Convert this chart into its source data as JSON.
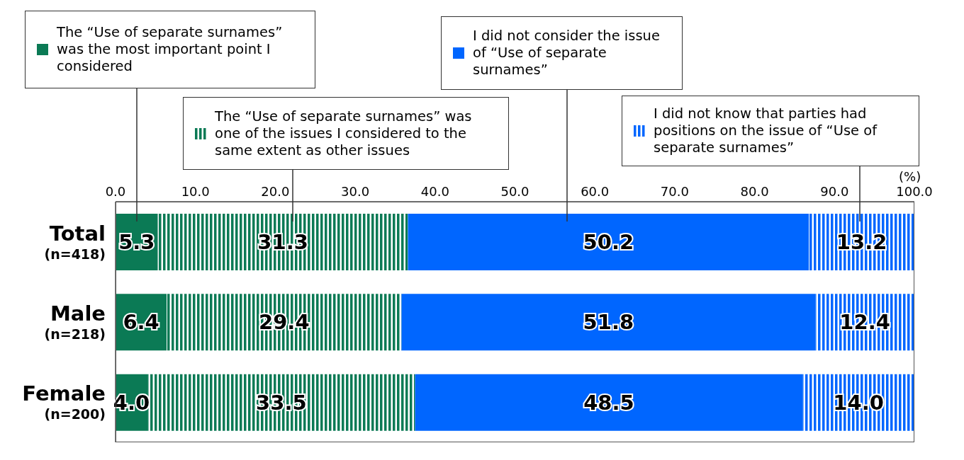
{
  "chart_data": {
    "type": "bar",
    "orientation": "horizontal",
    "stacked": true,
    "categories": [
      "Total\n(n=418)",
      "Male\n(n=218)",
      "Female\n(n=200)"
    ],
    "series": [
      {
        "name": "The “Use of separate surnames” was the most important point I considered",
        "color": "#0b7a55",
        "values": [
          5.3,
          6.4,
          4.0
        ],
        "value_labels": [
          "5.3",
          "6.4",
          "4.0"
        ]
      },
      {
        "name": "The “Use of separate surnames” was one of the issues I considered to the same extent as other issues",
        "color": "#0b7a55",
        "values": [
          31.3,
          29.4,
          33.5
        ],
        "value_labels": [
          "31.3",
          "29.4",
          "33.5"
        ]
      },
      {
        "name": "I did not consider the issue of “Use of separate surnames”",
        "color": "#0066ff",
        "values": [
          50.2,
          51.8,
          48.5
        ],
        "value_labels": [
          "50.2",
          "51.8",
          "48.5"
        ]
      },
      {
        "name": "I did not know that parties had positions on the issue of “Use of separate surnames”",
        "color": "#0066ff",
        "values": [
          13.2,
          12.4,
          14.0
        ],
        "value_labels": [
          "13.2",
          "12.4",
          "14.0"
        ]
      }
    ],
    "xlim": [
      0,
      100
    ],
    "xticks": [
      {
        "value": 0,
        "label": "0.0"
      },
      {
        "value": 10,
        "label": "10.0"
      },
      {
        "value": 20,
        "label": "20.0"
      },
      {
        "value": 30,
        "label": "30.0"
      },
      {
        "value": 40,
        "label": "40.0"
      },
      {
        "value": 50,
        "label": "50.0"
      },
      {
        "value": 60,
        "label": "60.0"
      },
      {
        "value": 70,
        "label": "70.0"
      },
      {
        "value": 80,
        "label": "80.0"
      },
      {
        "value": 90,
        "label": "90.0"
      },
      {
        "value": 100,
        "label": "100.0"
      }
    ],
    "xlabel": "(%)",
    "legend": "top",
    "grid": false
  }
}
